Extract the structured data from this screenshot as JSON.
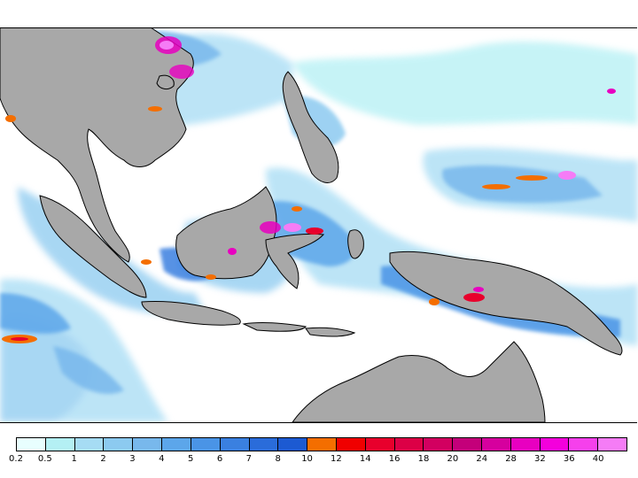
{
  "colorbar": {
    "labels": [
      "0.2",
      "0.5",
      "1",
      "2",
      "3",
      "4",
      "5",
      "6",
      "7",
      "8",
      "10",
      "12",
      "14",
      "16",
      "18",
      "20",
      "24",
      "28",
      "32",
      "36",
      "40"
    ],
    "colors": [
      "#e8fefe",
      "#b4f0f4",
      "#a6dcf4",
      "#8ccaf0",
      "#78b8ec",
      "#5ca6ea",
      "#4a94e6",
      "#3a80e0",
      "#2a6cda",
      "#1c5ad2",
      "#f46e00",
      "#f00000",
      "#e8002c",
      "#dc0046",
      "#d20060",
      "#c4007a",
      "#d6009e",
      "#e800c0",
      "#f400dc",
      "#f640ec",
      "#f57cf6"
    ]
  },
  "map": {
    "colors": {
      "land": "#a8a8a8",
      "coast": "#000000",
      "ocean": "#ffffff",
      "rain_light": "#a6dcf4",
      "rain_mid": "#5ca6ea",
      "rain_heavy": "#2a6cda",
      "rain_orange": "#f46e00",
      "rain_red": "#e8002c",
      "rain_magenta": "#e800c0",
      "rain_pink": "#f57cf6"
    }
  }
}
